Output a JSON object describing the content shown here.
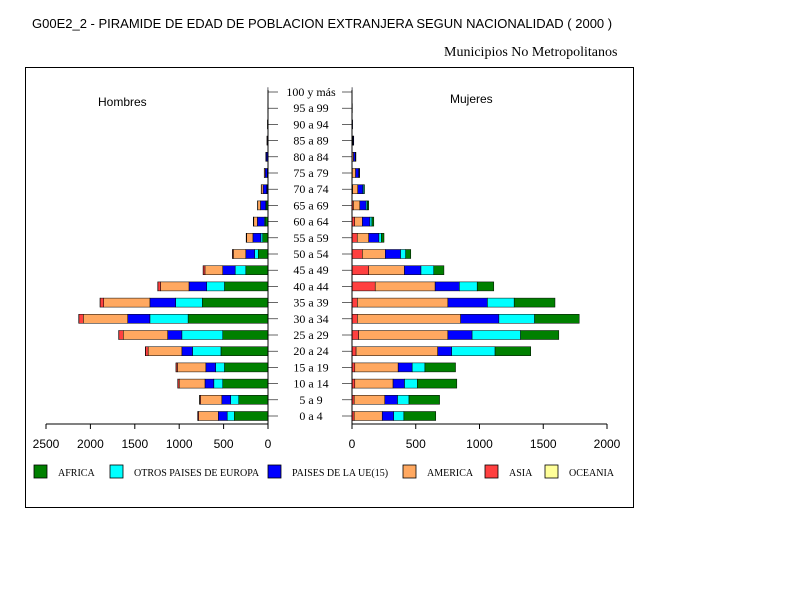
{
  "title": "G00E2_2 - PIRAMIDE DE EDAD DE POBLACION EXTRANJERA SEGUN NACIONALIDAD ( 2000 )",
  "subtitle": "Municipios No Metropolitanos",
  "chart_data": {
    "type": "bar",
    "orientation": "horizontal-population-pyramid",
    "stacked": true,
    "left_panel_label": "Hombres",
    "right_panel_label": "Mujeres",
    "categories": [
      "0 a 4",
      "5 a 9",
      "10 a 14",
      "15 a 19",
      "20 a 24",
      "25 a 29",
      "30 a 34",
      "35 a 39",
      "40 a 44",
      "45 a 49",
      "50 a 54",
      "55 a 59",
      "60 a 64",
      "65 a 69",
      "70 a 74",
      "75 a 79",
      "80 a 84",
      "85 a 89",
      "90 a 94",
      "95 a 99",
      "100 y más"
    ],
    "x_ticks_left": [
      "2500",
      "2000",
      "1500",
      "1000",
      "500",
      "0"
    ],
    "x_ticks_right": [
      "0",
      "500",
      "1000",
      "1500",
      "2000"
    ],
    "xlim_left": [
      0,
      2500
    ],
    "xlim_right": [
      0,
      2000
    ],
    "grid": false,
    "legend_position": "bottom",
    "series": [
      {
        "name": "AFRICA",
        "color": "#008000",
        "hombres": [
          380,
          330,
          510,
          490,
          530,
          510,
          900,
          740,
          490,
          250,
          110,
          60,
          30,
          20,
          10,
          5,
          3,
          2,
          1,
          0,
          0
        ],
        "mujeres": [
          250,
          240,
          310,
          240,
          280,
          300,
          350,
          320,
          130,
          80,
          40,
          20,
          15,
          10,
          5,
          3,
          2,
          1,
          0,
          0,
          0
        ]
      },
      {
        "name": "OTROS PAISES DE EUROPA",
        "color": "#00ffff",
        "hombres": [
          80,
          90,
          100,
          100,
          320,
          460,
          430,
          300,
          200,
          120,
          40,
          20,
          10,
          5,
          5,
          2,
          1,
          0,
          0,
          0,
          0
        ],
        "mujeres": [
          80,
          90,
          100,
          100,
          340,
          380,
          280,
          210,
          140,
          100,
          40,
          20,
          15,
          10,
          8,
          4,
          2,
          1,
          0,
          0,
          0
        ]
      },
      {
        "name": "PAISES DE LA UE(15)",
        "color": "#0000ff",
        "hombres": [
          100,
          100,
          100,
          110,
          120,
          160,
          250,
          290,
          200,
          140,
          100,
          90,
          80,
          60,
          40,
          25,
          15,
          8,
          4,
          2,
          1
        ],
        "mujeres": [
          90,
          100,
          90,
          110,
          110,
          190,
          300,
          310,
          190,
          130,
          120,
          80,
          60,
          50,
          40,
          25,
          15,
          6,
          3,
          2,
          1
        ]
      },
      {
        "name": "AMERICA",
        "color": "#ffa860",
        "hombres": [
          220,
          240,
          290,
          320,
          380,
          500,
          500,
          520,
          320,
          200,
          140,
          70,
          40,
          30,
          20,
          10,
          5,
          2,
          1,
          1,
          0
        ],
        "mujeres": [
          220,
          240,
          300,
          340,
          640,
          700,
          810,
          710,
          470,
          280,
          180,
          90,
          60,
          50,
          40,
          25,
          10,
          5,
          2,
          1,
          0
        ]
      },
      {
        "name": "ASIA",
        "color": "#ff4040",
        "hombres": [
          10,
          10,
          15,
          15,
          30,
          50,
          50,
          40,
          30,
          20,
          10,
          5,
          5,
          2,
          2,
          1,
          1,
          0,
          0,
          0,
          0
        ],
        "mujeres": [
          15,
          15,
          20,
          20,
          30,
          50,
          40,
          40,
          180,
          130,
          80,
          40,
          20,
          10,
          5,
          3,
          2,
          1,
          0,
          0,
          0
        ]
      },
      {
        "name": "OCEANIA",
        "color": "#ffff99",
        "hombres": [
          2,
          2,
          2,
          2,
          2,
          2,
          2,
          2,
          2,
          1,
          1,
          1,
          1,
          1,
          0,
          0,
          0,
          0,
          0,
          0,
          0
        ],
        "mujeres": [
          2,
          2,
          2,
          2,
          2,
          2,
          2,
          2,
          2,
          1,
          1,
          1,
          1,
          1,
          0,
          0,
          0,
          0,
          0,
          0,
          0
        ]
      }
    ]
  }
}
